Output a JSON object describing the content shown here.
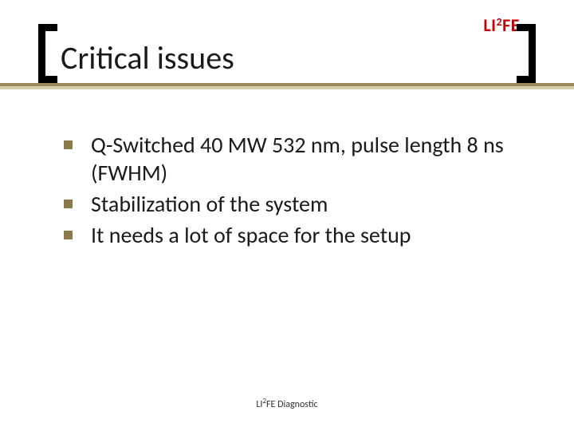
{
  "logo": {
    "prefix": "LI",
    "super": "2",
    "suffix": "FE",
    "color": "#c00000"
  },
  "title": "Critical issues",
  "bullets": [
    "Q-Switched 40 MW 532 nm, pulse length 8 ns (FWHM)",
    "Stabilization of the system",
    "It needs a lot of space for the setup"
  ],
  "footer": {
    "prefix": "LI",
    "super": "2",
    "suffix": "FE Diagnostic"
  },
  "bracket_color": "#000000",
  "rule_dark": "#9a885e",
  "rule_light": "#d8cba8",
  "bullet_marker_color": "#8a7a4e"
}
